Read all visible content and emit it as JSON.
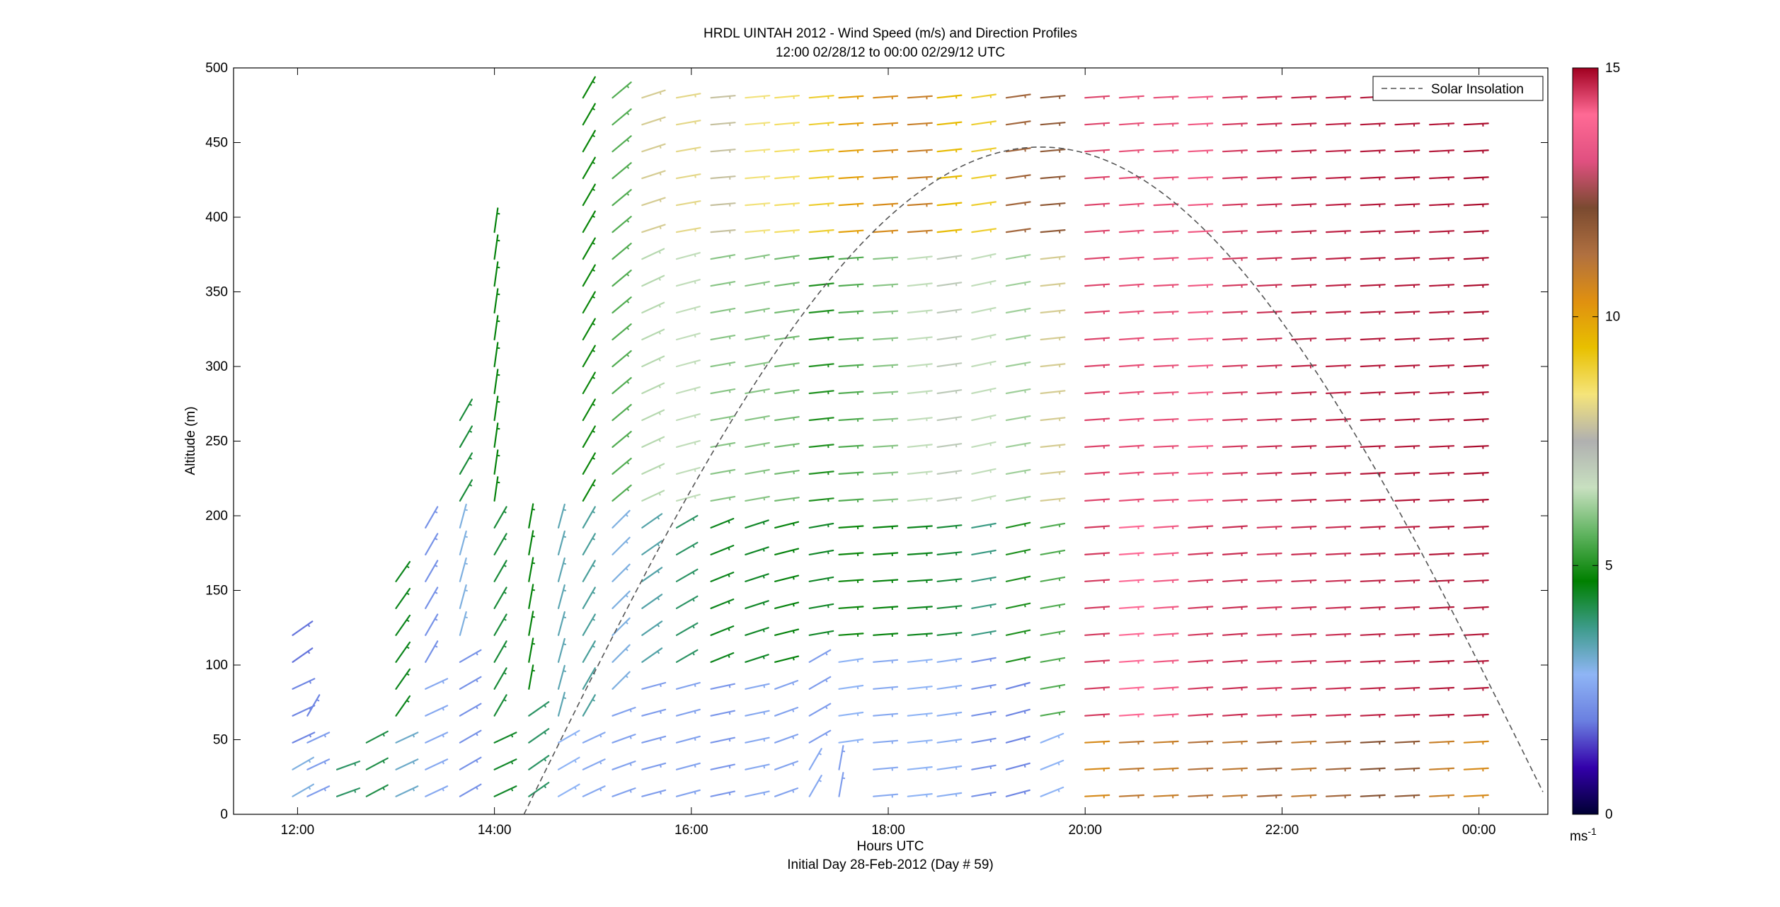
{
  "chart_data": {
    "type": "wind-barb-profile",
    "title": "HRDL UINTAH 2012 - Wind Speed (m/s) and Direction Profiles",
    "subtitle": "12:00 02/28/12 to 00:00 02/29/12  UTC",
    "xlabel": "Hours UTC",
    "xlabel2": "Initial Day 28-Feb-2012 (Day # 59)",
    "ylabel": "Altitude (m)",
    "x_range_hours": [
      11.35,
      24.7
    ],
    "ylim": [
      0,
      500
    ],
    "x_ticks": [
      {
        "value": 12,
        "label": "12:00"
      },
      {
        "value": 14,
        "label": "14:00"
      },
      {
        "value": 16,
        "label": "16:00"
      },
      {
        "value": 18,
        "label": "18:00"
      },
      {
        "value": 20,
        "label": "20:00"
      },
      {
        "value": 22,
        "label": "22:00"
      },
      {
        "value": 24,
        "label": "00:00"
      }
    ],
    "y_ticks": [
      0,
      50,
      100,
      150,
      200,
      250,
      300,
      350,
      400,
      450,
      500
    ],
    "legend": {
      "label": "Solar Insolation",
      "position": "top-right",
      "style": "dashed"
    },
    "colorbar": {
      "range": [
        0,
        15
      ],
      "ticks": [
        0,
        5,
        10,
        15
      ],
      "units": "ms",
      "units_exp": "-1",
      "stops": [
        "#000033",
        "#3300aa",
        "#6a7fe0",
        "#8fb5f5",
        "#3d9b8a",
        "#008000",
        "#5fb35f",
        "#c8e0c0",
        "#b0b0b0",
        "#f5e47a",
        "#e8c000",
        "#e09010",
        "#b07040",
        "#7a4a30",
        "#e05080",
        "#ff6a95",
        "#a00020"
      ]
    },
    "solar_insolation": {
      "start_hour": 14.3,
      "peak_hour": 19.55,
      "peak_altitude": 447,
      "end_hour": 24.65,
      "end_altitude": 15
    },
    "profiles": [
      {
        "t": 11.95,
        "tops": 120,
        "segs": [
          [
            0,
            40,
            3.0,
            30
          ],
          [
            40,
            90,
            2.0,
            25
          ],
          [
            90,
            130,
            1.8,
            35
          ]
        ]
      },
      {
        "t": 12.1,
        "tops": 75,
        "segs": [
          [
            0,
            60,
            2.4,
            25
          ],
          [
            60,
            80,
            2.0,
            60
          ]
        ]
      },
      {
        "t": 12.4,
        "tops": 45,
        "segs": [
          [
            0,
            50,
            4.0,
            20
          ]
        ]
      },
      {
        "t": 12.7,
        "tops": 65,
        "segs": [
          [
            0,
            65,
            4.2,
            28
          ]
        ]
      },
      {
        "t": 13.0,
        "tops": 170,
        "segs": [
          [
            0,
            60,
            3.2,
            25
          ],
          [
            60,
            180,
            4.5,
            55
          ]
        ]
      },
      {
        "t": 13.3,
        "tops": 200,
        "segs": [
          [
            0,
            90,
            2.6,
            25
          ],
          [
            90,
            200,
            2.2,
            60
          ]
        ]
      },
      {
        "t": 13.65,
        "tops": 265,
        "segs": [
          [
            0,
            120,
            2.2,
            30
          ],
          [
            120,
            200,
            3.0,
            75
          ],
          [
            200,
            265,
            4.3,
            60
          ]
        ]
      },
      {
        "t": 14.0,
        "tops": 400,
        "segs": [
          [
            0,
            60,
            4.4,
            25
          ],
          [
            60,
            200,
            4.3,
            60
          ],
          [
            200,
            400,
            4.6,
            82
          ]
        ]
      },
      {
        "t": 14.35,
        "tops": 200,
        "segs": [
          [
            0,
            80,
            4.0,
            35
          ],
          [
            80,
            200,
            4.6,
            80
          ]
        ]
      },
      {
        "t": 14.65,
        "tops": 200,
        "segs": [
          [
            0,
            60,
            2.8,
            30
          ],
          [
            60,
            200,
            3.4,
            75
          ]
        ]
      },
      {
        "t": 14.9,
        "tops": 490,
        "segs": [
          [
            0,
            60,
            2.6,
            25
          ],
          [
            60,
            200,
            3.6,
            60
          ],
          [
            200,
            500,
            4.8,
            60
          ]
        ]
      },
      {
        "t": 15.2,
        "tops": 490,
        "segs": [
          [
            0,
            80,
            2.5,
            20
          ],
          [
            80,
            200,
            3.0,
            45
          ],
          [
            200,
            500,
            5.5,
            40
          ]
        ]
      },
      {
        "t": 15.5,
        "tops": 490,
        "segs": [
          [
            0,
            100,
            2.4,
            15
          ],
          [
            100,
            200,
            3.5,
            35
          ],
          [
            200,
            380,
            6.4,
            25
          ],
          [
            380,
            500,
            8.0,
            18
          ]
        ]
      },
      {
        "t": 15.85,
        "tops": 490,
        "segs": [
          [
            0,
            100,
            2.5,
            15
          ],
          [
            100,
            200,
            4.0,
            30
          ],
          [
            200,
            380,
            6.5,
            15
          ],
          [
            380,
            500,
            8.2,
            10
          ]
        ]
      },
      {
        "t": 16.2,
        "tops": 490,
        "segs": [
          [
            0,
            100,
            2.3,
            12
          ],
          [
            100,
            200,
            4.5,
            22
          ],
          [
            200,
            380,
            6.0,
            10
          ],
          [
            380,
            500,
            7.8,
            5
          ]
        ]
      },
      {
        "t": 16.55,
        "tops": 490,
        "segs": [
          [
            0,
            100,
            2.6,
            12
          ],
          [
            100,
            200,
            4.4,
            18
          ],
          [
            200,
            380,
            6.0,
            10
          ],
          [
            380,
            500,
            8.4,
            5
          ]
        ]
      },
      {
        "t": 16.85,
        "tops": 490,
        "segs": [
          [
            0,
            100,
            2.5,
            20
          ],
          [
            100,
            200,
            4.6,
            14
          ],
          [
            200,
            380,
            5.8,
            8
          ],
          [
            380,
            500,
            8.6,
            5
          ]
        ]
      },
      {
        "t": 17.2,
        "tops": 490,
        "segs": [
          [
            0,
            40,
            2.6,
            60
          ],
          [
            40,
            120,
            2.4,
            30
          ],
          [
            120,
            200,
            4.4,
            10
          ],
          [
            200,
            380,
            5.0,
            6
          ],
          [
            380,
            500,
            9.0,
            5
          ]
        ]
      },
      {
        "t": 17.5,
        "tops": 490,
        "segs": [
          [
            0,
            40,
            2.4,
            80
          ],
          [
            40,
            120,
            2.8,
            8
          ],
          [
            120,
            200,
            4.8,
            4
          ],
          [
            200,
            380,
            5.5,
            4
          ],
          [
            380,
            500,
            10.0,
            4
          ]
        ]
      },
      {
        "t": 17.85,
        "tops": 490,
        "segs": [
          [
            0,
            120,
            2.6,
            5
          ],
          [
            120,
            200,
            4.6,
            4
          ],
          [
            200,
            380,
            6.0,
            4
          ],
          [
            380,
            500,
            10.5,
            4
          ]
        ]
      },
      {
        "t": 18.2,
        "tops": 490,
        "segs": [
          [
            0,
            120,
            2.8,
            6
          ],
          [
            120,
            200,
            4.5,
            4
          ],
          [
            200,
            380,
            6.5,
            6
          ],
          [
            380,
            500,
            10.8,
            4
          ]
        ]
      },
      {
        "t": 18.5,
        "tops": 490,
        "segs": [
          [
            0,
            120,
            2.7,
            8
          ],
          [
            120,
            200,
            4.3,
            6
          ],
          [
            200,
            380,
            7.0,
            8
          ],
          [
            380,
            500,
            9.5,
            6
          ]
        ]
      },
      {
        "t": 18.85,
        "tops": 490,
        "segs": [
          [
            0,
            120,
            2.2,
            10
          ],
          [
            120,
            200,
            3.8,
            10
          ],
          [
            200,
            380,
            6.5,
            12
          ],
          [
            380,
            500,
            9.0,
            8
          ]
        ]
      },
      {
        "t": 19.2,
        "tops": 490,
        "segs": [
          [
            0,
            100,
            2.0,
            15
          ],
          [
            100,
            200,
            5.0,
            12
          ],
          [
            200,
            380,
            6.2,
            10
          ],
          [
            380,
            500,
            11.5,
            8
          ]
        ]
      },
      {
        "t": 19.55,
        "tops": 490,
        "segs": [
          [
            0,
            60,
            2.8,
            22
          ],
          [
            60,
            200,
            5.5,
            10
          ],
          [
            200,
            380,
            8.0,
            6
          ],
          [
            380,
            500,
            11.8,
            5
          ]
        ]
      },
      {
        "t": 20.0,
        "tops": 490,
        "segs": [
          [
            0,
            60,
            10.5,
            3
          ],
          [
            60,
            200,
            14.5,
            4
          ],
          [
            200,
            500,
            14.4,
            4
          ]
        ]
      },
      {
        "t": 20.35,
        "tops": 490,
        "segs": [
          [
            0,
            60,
            11.0,
            3
          ],
          [
            60,
            200,
            14.0,
            4
          ],
          [
            200,
            500,
            14.3,
            4
          ]
        ]
      },
      {
        "t": 20.7,
        "tops": 490,
        "segs": [
          [
            0,
            60,
            10.8,
            3
          ],
          [
            60,
            200,
            14.2,
            4
          ],
          [
            200,
            500,
            14.3,
            3
          ]
        ]
      },
      {
        "t": 21.05,
        "tops": 490,
        "segs": [
          [
            0,
            60,
            11.2,
            3
          ],
          [
            60,
            200,
            14.5,
            4
          ],
          [
            200,
            500,
            14.2,
            3
          ]
        ]
      },
      {
        "t": 21.4,
        "tops": 490,
        "segs": [
          [
            0,
            60,
            11.0,
            3
          ],
          [
            60,
            200,
            14.6,
            4
          ],
          [
            200,
            500,
            14.5,
            3
          ]
        ]
      },
      {
        "t": 21.75,
        "tops": 490,
        "segs": [
          [
            0,
            60,
            11.5,
            3
          ],
          [
            60,
            200,
            14.5,
            3
          ],
          [
            200,
            500,
            14.6,
            3
          ]
        ]
      },
      {
        "t": 22.1,
        "tops": 490,
        "segs": [
          [
            0,
            60,
            11.0,
            3
          ],
          [
            60,
            200,
            14.6,
            3
          ],
          [
            200,
            500,
            14.7,
            3
          ]
        ]
      },
      {
        "t": 22.45,
        "tops": 490,
        "segs": [
          [
            0,
            60,
            11.5,
            3
          ],
          [
            60,
            200,
            14.6,
            3
          ],
          [
            200,
            500,
            14.7,
            3
          ]
        ]
      },
      {
        "t": 22.8,
        "tops": 490,
        "segs": [
          [
            0,
            60,
            12.0,
            3
          ],
          [
            60,
            200,
            14.7,
            3
          ],
          [
            200,
            500,
            14.8,
            3
          ]
        ]
      },
      {
        "t": 23.15,
        "tops": 490,
        "segs": [
          [
            0,
            60,
            11.8,
            3
          ],
          [
            60,
            200,
            14.7,
            3
          ],
          [
            200,
            500,
            14.8,
            3
          ]
        ]
      },
      {
        "t": 23.5,
        "tops": 470,
        "segs": [
          [
            0,
            60,
            10.8,
            3
          ],
          [
            60,
            200,
            14.8,
            3
          ],
          [
            200,
            500,
            14.8,
            3
          ]
        ]
      },
      {
        "t": 23.85,
        "tops": 470,
        "segs": [
          [
            0,
            60,
            10.5,
            3
          ],
          [
            60,
            200,
            14.8,
            3
          ],
          [
            200,
            500,
            14.9,
            3
          ]
        ]
      }
    ]
  }
}
